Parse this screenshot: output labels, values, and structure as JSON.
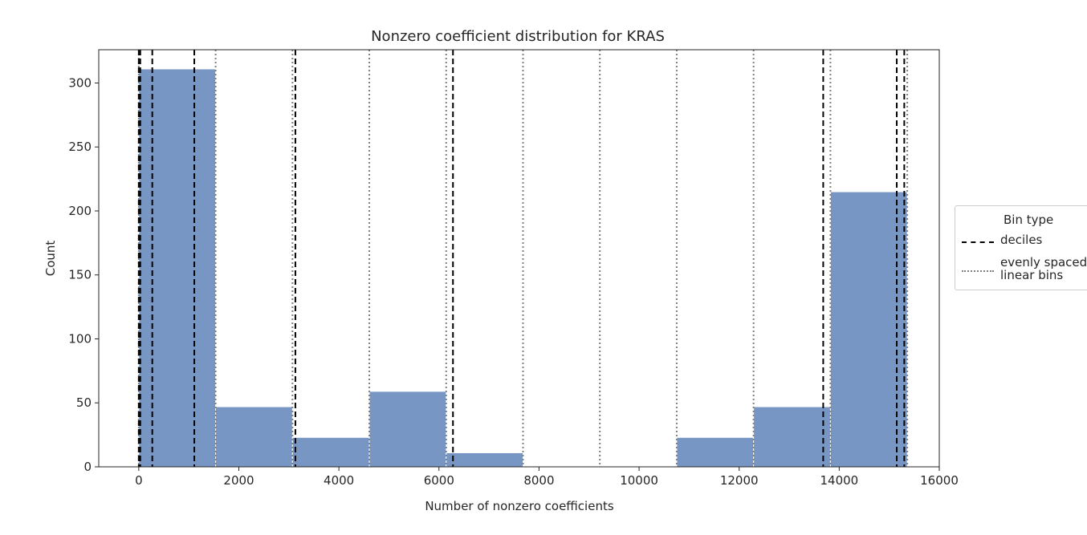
{
  "chart_data": {
    "type": "bar",
    "title": "Nonzero coefficient distribution for KRAS",
    "xlabel": "Number of nonzero coefficients",
    "ylabel": "Count",
    "xlim": [
      -800,
      16000
    ],
    "ylim": [
      0,
      326
    ],
    "x_ticks": [
      0,
      2000,
      4000,
      6000,
      8000,
      10000,
      12000,
      14000,
      16000
    ],
    "y_ticks": [
      0,
      50,
      100,
      150,
      200,
      250,
      300
    ],
    "bar_color": "#7896c4",
    "bins": [
      {
        "start": 0,
        "end": 1536,
        "count": 311
      },
      {
        "start": 1536,
        "end": 3072,
        "count": 47
      },
      {
        "start": 3072,
        "end": 4608,
        "count": 23
      },
      {
        "start": 4608,
        "end": 6144,
        "count": 59
      },
      {
        "start": 6144,
        "end": 7680,
        "count": 11
      },
      {
        "start": 7680,
        "end": 9216,
        "count": 0
      },
      {
        "start": 9216,
        "end": 10752,
        "count": 0
      },
      {
        "start": 10752,
        "end": 12288,
        "count": 23
      },
      {
        "start": 12288,
        "end": 13824,
        "count": 47
      },
      {
        "start": 13824,
        "end": 15360,
        "count": 215
      }
    ],
    "decile_lines": [
      0,
      30,
      270,
      1110,
      3130,
      6280,
      13680,
      15150,
      15300
    ],
    "linear_bin_lines": [
      0,
      1536,
      3072,
      4608,
      6144,
      7680,
      9216,
      10752,
      12288,
      13824,
      15360
    ],
    "legend": {
      "title": "Bin type",
      "position": "outside-right",
      "entries": [
        {
          "label": "deciles",
          "style": "dashed",
          "color": "#000000"
        },
        {
          "label": "evenly spaced\nlinear bins",
          "style": "dotted",
          "color": "#808080"
        }
      ]
    }
  }
}
